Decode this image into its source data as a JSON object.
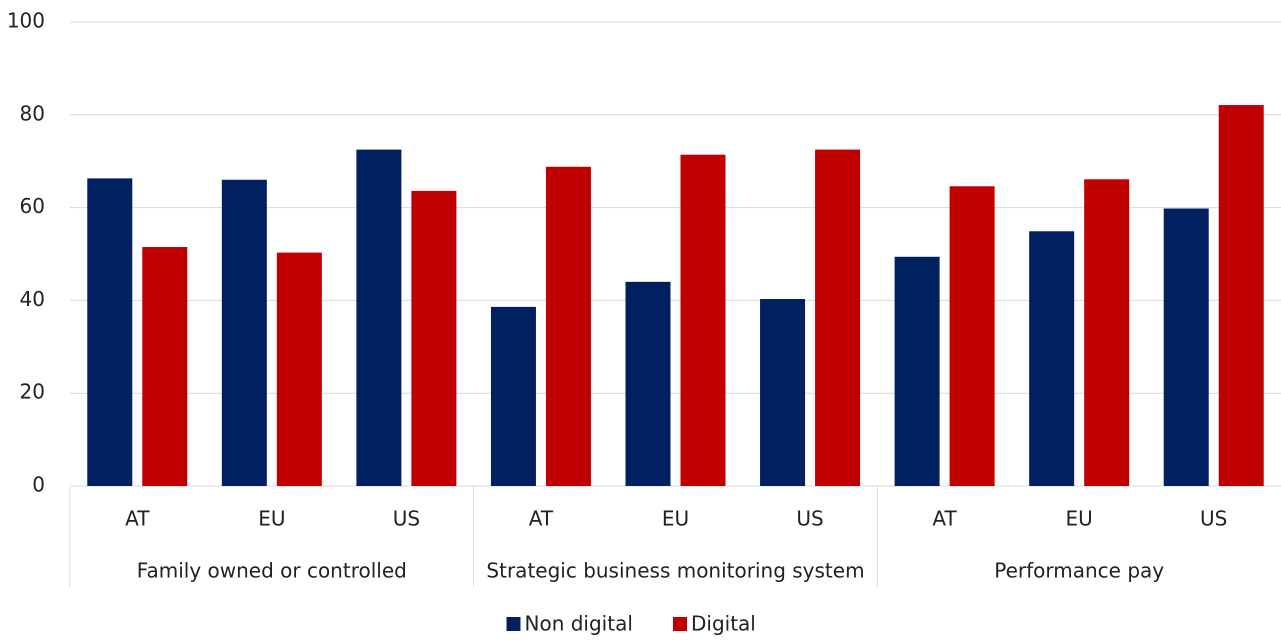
{
  "chart_data": {
    "type": "bar",
    "categories": [
      "AT",
      "EU",
      "US",
      "AT",
      "EU",
      "US",
      "AT",
      "EU",
      "US"
    ],
    "groups": [
      "Family owned or controlled",
      "Strategic business monitoring system",
      "Performance pay"
    ],
    "series": [
      {
        "name": "Non digital",
        "color": "#002060",
        "values": [
          66.3,
          66,
          72.5,
          38.6,
          44,
          40.3,
          49.4,
          54.9,
          59.8
        ]
      },
      {
        "name": "Digital",
        "color": "#c00000",
        "values": [
          51.5,
          50.3,
          63.6,
          68.8,
          71.4,
          72.5,
          64.6,
          66.1,
          82.1
        ]
      }
    ],
    "ylim": [
      0,
      100
    ],
    "yticks": [
      0,
      20,
      40,
      60,
      80,
      100
    ],
    "grid": true,
    "legend": "bottom"
  }
}
